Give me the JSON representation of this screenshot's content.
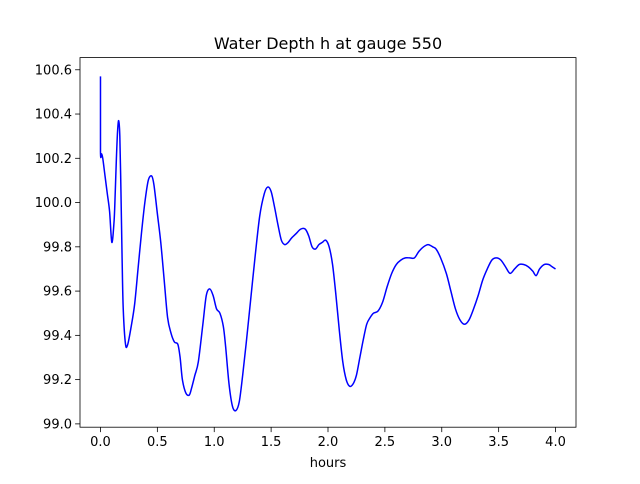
{
  "chart_data": {
    "type": "line",
    "title": "Water Depth h at gauge 550",
    "xlabel": "hours",
    "ylabel": "",
    "xlim": [
      -0.18,
      4.18
    ],
    "ylim": [
      98.985,
      100.655
    ],
    "xticks": [
      0.0,
      0.5,
      1.0,
      1.5,
      2.0,
      2.5,
      3.0,
      3.5,
      4.0
    ],
    "xtick_labels": [
      "0.0",
      "0.5",
      "1.0",
      "1.5",
      "2.0",
      "2.5",
      "3.0",
      "3.5",
      "4.0"
    ],
    "yticks": [
      99.0,
      99.2,
      99.4,
      99.6,
      99.8,
      100.0,
      100.2,
      100.4,
      100.6
    ],
    "ytick_labels": [
      "99.0",
      "99.2",
      "99.4",
      "99.6",
      "99.8",
      "100.0",
      "100.2",
      "100.4",
      "100.6"
    ],
    "grid": false,
    "colors": {
      "line": "#0000ff",
      "axes": "#000000",
      "background": "#ffffff"
    },
    "series": [
      {
        "name": "",
        "x": [
          0.0,
          0.0,
          0.01,
          0.02,
          0.04,
          0.06,
          0.08,
          0.1,
          0.12,
          0.13,
          0.14,
          0.15,
          0.16,
          0.17,
          0.18,
          0.19,
          0.2,
          0.22,
          0.24,
          0.27,
          0.3,
          0.33,
          0.36,
          0.39,
          0.42,
          0.45,
          0.47,
          0.5,
          0.53,
          0.56,
          0.59,
          0.62,
          0.65,
          0.68,
          0.7,
          0.72,
          0.75,
          0.78,
          0.8,
          0.83,
          0.86,
          0.9,
          0.93,
          0.96,
          0.99,
          1.02,
          1.05,
          1.08,
          1.1,
          1.13,
          1.16,
          1.19,
          1.22,
          1.25,
          1.28,
          1.32,
          1.36,
          1.4,
          1.44,
          1.47,
          1.5,
          1.53,
          1.56,
          1.59,
          1.62,
          1.65,
          1.68,
          1.72,
          1.76,
          1.8,
          1.83,
          1.86,
          1.89,
          1.92,
          1.95,
          1.98,
          2.01,
          2.04,
          2.07,
          2.1,
          2.13,
          2.16,
          2.19,
          2.22,
          2.25,
          2.28,
          2.31,
          2.34,
          2.37,
          2.4,
          2.44,
          2.48,
          2.52,
          2.56,
          2.6,
          2.64,
          2.68,
          2.72,
          2.76,
          2.8,
          2.84,
          2.88,
          2.92,
          2.95,
          2.99,
          3.04,
          3.08,
          3.12,
          3.16,
          3.2,
          3.24,
          3.28,
          3.32,
          3.36,
          3.4,
          3.44,
          3.48,
          3.52,
          3.56,
          3.6,
          3.64,
          3.68,
          3.72,
          3.76,
          3.8,
          3.83,
          3.86,
          3.9,
          3.94,
          3.97,
          4.0
        ],
        "y": [
          100.57,
          100.23,
          100.22,
          100.2,
          100.12,
          100.04,
          99.96,
          99.82,
          99.92,
          100.05,
          100.2,
          100.32,
          100.37,
          100.3,
          100.05,
          99.75,
          99.52,
          99.36,
          99.36,
          99.44,
          99.54,
          99.7,
          99.86,
          100.0,
          100.1,
          100.12,
          100.08,
          99.95,
          99.82,
          99.65,
          99.48,
          99.41,
          99.37,
          99.36,
          99.3,
          99.2,
          99.14,
          99.13,
          99.16,
          99.22,
          99.28,
          99.45,
          99.58,
          99.61,
          99.58,
          99.52,
          99.5,
          99.44,
          99.35,
          99.18,
          99.08,
          99.06,
          99.1,
          99.22,
          99.36,
          99.56,
          99.76,
          99.94,
          100.04,
          100.07,
          100.05,
          99.98,
          99.9,
          99.83,
          99.81,
          99.82,
          99.84,
          99.86,
          99.88,
          99.88,
          99.85,
          99.8,
          99.79,
          99.81,
          99.82,
          99.83,
          99.8,
          99.72,
          99.58,
          99.42,
          99.28,
          99.2,
          99.17,
          99.18,
          99.22,
          99.3,
          99.38,
          99.45,
          99.48,
          99.5,
          99.51,
          99.55,
          99.62,
          99.68,
          99.72,
          99.74,
          99.75,
          99.75,
          99.75,
          99.78,
          99.8,
          99.81,
          99.8,
          99.79,
          99.75,
          99.68,
          99.6,
          99.52,
          99.47,
          99.45,
          99.47,
          99.52,
          99.58,
          99.65,
          99.7,
          99.74,
          99.75,
          99.74,
          99.71,
          99.68,
          99.7,
          99.72,
          99.72,
          99.71,
          99.69,
          99.67,
          99.7,
          99.72,
          99.72,
          99.71,
          99.7
        ]
      }
    ]
  }
}
